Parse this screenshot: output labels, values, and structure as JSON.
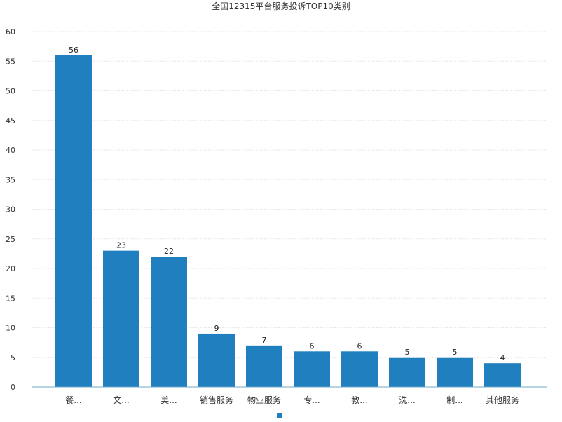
{
  "chart_data": {
    "type": "bar",
    "title": "全国12315平台服务投诉TOP10类别",
    "categories": [
      "餐...",
      "文...",
      "美...",
      "销售服务",
      "物业服务",
      "专...",
      "教...",
      "洗...",
      "制...",
      "其他服务"
    ],
    "series": [
      {
        "values": [
          56,
          23,
          22,
          9,
          7,
          6,
          6,
          5,
          5,
          4
        ],
        "color": "#1f7fbf"
      }
    ],
    "ylim": [
      0,
      60
    ],
    "yticks": [
      0,
      5,
      10,
      15,
      20,
      25,
      30,
      35,
      40,
      45,
      50,
      55,
      60
    ],
    "grid": true,
    "data_labels": true,
    "legend": "bottom-center",
    "xlabel": "",
    "ylabel": ""
  },
  "colors": {
    "bar": "#1f7fbf",
    "axis": "#6fa8c8",
    "grid": "#e6e6e6"
  }
}
